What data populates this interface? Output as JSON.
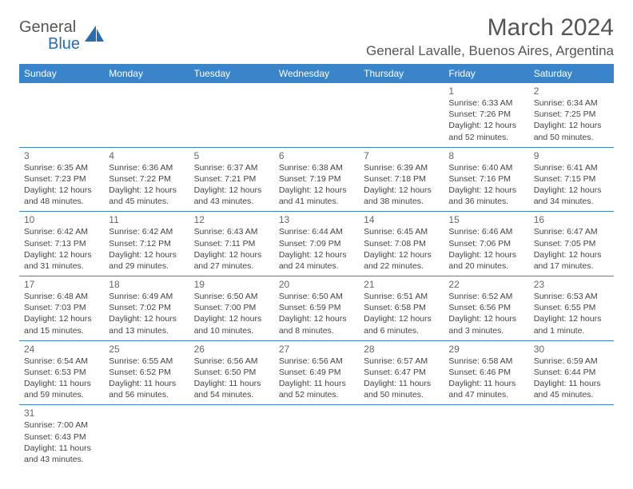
{
  "logo": {
    "text1": "General",
    "text2": "Blue"
  },
  "header": {
    "month_title": "March 2024",
    "location": "General Lavalle, Buenos Aires, Argentina"
  },
  "colors": {
    "header_bg": "#3a85c9",
    "header_text": "#ffffff",
    "divider": "#3a85c9",
    "logo_gray": "#555555",
    "logo_blue": "#2a6cb0"
  },
  "day_labels": [
    "Sunday",
    "Monday",
    "Tuesday",
    "Wednesday",
    "Thursday",
    "Friday",
    "Saturday"
  ],
  "weeks": [
    [
      {
        "n": "",
        "sr": "",
        "ss": "",
        "dl": ""
      },
      {
        "n": "",
        "sr": "",
        "ss": "",
        "dl": ""
      },
      {
        "n": "",
        "sr": "",
        "ss": "",
        "dl": ""
      },
      {
        "n": "",
        "sr": "",
        "ss": "",
        "dl": ""
      },
      {
        "n": "",
        "sr": "",
        "ss": "",
        "dl": ""
      },
      {
        "n": "1",
        "sr": "Sunrise: 6:33 AM",
        "ss": "Sunset: 7:26 PM",
        "dl": "Daylight: 12 hours and 52 minutes."
      },
      {
        "n": "2",
        "sr": "Sunrise: 6:34 AM",
        "ss": "Sunset: 7:25 PM",
        "dl": "Daylight: 12 hours and 50 minutes."
      }
    ],
    [
      {
        "n": "3",
        "sr": "Sunrise: 6:35 AM",
        "ss": "Sunset: 7:23 PM",
        "dl": "Daylight: 12 hours and 48 minutes."
      },
      {
        "n": "4",
        "sr": "Sunrise: 6:36 AM",
        "ss": "Sunset: 7:22 PM",
        "dl": "Daylight: 12 hours and 45 minutes."
      },
      {
        "n": "5",
        "sr": "Sunrise: 6:37 AM",
        "ss": "Sunset: 7:21 PM",
        "dl": "Daylight: 12 hours and 43 minutes."
      },
      {
        "n": "6",
        "sr": "Sunrise: 6:38 AM",
        "ss": "Sunset: 7:19 PM",
        "dl": "Daylight: 12 hours and 41 minutes."
      },
      {
        "n": "7",
        "sr": "Sunrise: 6:39 AM",
        "ss": "Sunset: 7:18 PM",
        "dl": "Daylight: 12 hours and 38 minutes."
      },
      {
        "n": "8",
        "sr": "Sunrise: 6:40 AM",
        "ss": "Sunset: 7:16 PM",
        "dl": "Daylight: 12 hours and 36 minutes."
      },
      {
        "n": "9",
        "sr": "Sunrise: 6:41 AM",
        "ss": "Sunset: 7:15 PM",
        "dl": "Daylight: 12 hours and 34 minutes."
      }
    ],
    [
      {
        "n": "10",
        "sr": "Sunrise: 6:42 AM",
        "ss": "Sunset: 7:13 PM",
        "dl": "Daylight: 12 hours and 31 minutes."
      },
      {
        "n": "11",
        "sr": "Sunrise: 6:42 AM",
        "ss": "Sunset: 7:12 PM",
        "dl": "Daylight: 12 hours and 29 minutes."
      },
      {
        "n": "12",
        "sr": "Sunrise: 6:43 AM",
        "ss": "Sunset: 7:11 PM",
        "dl": "Daylight: 12 hours and 27 minutes."
      },
      {
        "n": "13",
        "sr": "Sunrise: 6:44 AM",
        "ss": "Sunset: 7:09 PM",
        "dl": "Daylight: 12 hours and 24 minutes."
      },
      {
        "n": "14",
        "sr": "Sunrise: 6:45 AM",
        "ss": "Sunset: 7:08 PM",
        "dl": "Daylight: 12 hours and 22 minutes."
      },
      {
        "n": "15",
        "sr": "Sunrise: 6:46 AM",
        "ss": "Sunset: 7:06 PM",
        "dl": "Daylight: 12 hours and 20 minutes."
      },
      {
        "n": "16",
        "sr": "Sunrise: 6:47 AM",
        "ss": "Sunset: 7:05 PM",
        "dl": "Daylight: 12 hours and 17 minutes."
      }
    ],
    [
      {
        "n": "17",
        "sr": "Sunrise: 6:48 AM",
        "ss": "Sunset: 7:03 PM",
        "dl": "Daylight: 12 hours and 15 minutes."
      },
      {
        "n": "18",
        "sr": "Sunrise: 6:49 AM",
        "ss": "Sunset: 7:02 PM",
        "dl": "Daylight: 12 hours and 13 minutes."
      },
      {
        "n": "19",
        "sr": "Sunrise: 6:50 AM",
        "ss": "Sunset: 7:00 PM",
        "dl": "Daylight: 12 hours and 10 minutes."
      },
      {
        "n": "20",
        "sr": "Sunrise: 6:50 AM",
        "ss": "Sunset: 6:59 PM",
        "dl": "Daylight: 12 hours and 8 minutes."
      },
      {
        "n": "21",
        "sr": "Sunrise: 6:51 AM",
        "ss": "Sunset: 6:58 PM",
        "dl": "Daylight: 12 hours and 6 minutes."
      },
      {
        "n": "22",
        "sr": "Sunrise: 6:52 AM",
        "ss": "Sunset: 6:56 PM",
        "dl": "Daylight: 12 hours and 3 minutes."
      },
      {
        "n": "23",
        "sr": "Sunrise: 6:53 AM",
        "ss": "Sunset: 6:55 PM",
        "dl": "Daylight: 12 hours and 1 minute."
      }
    ],
    [
      {
        "n": "24",
        "sr": "Sunrise: 6:54 AM",
        "ss": "Sunset: 6:53 PM",
        "dl": "Daylight: 11 hours and 59 minutes."
      },
      {
        "n": "25",
        "sr": "Sunrise: 6:55 AM",
        "ss": "Sunset: 6:52 PM",
        "dl": "Daylight: 11 hours and 56 minutes."
      },
      {
        "n": "26",
        "sr": "Sunrise: 6:56 AM",
        "ss": "Sunset: 6:50 PM",
        "dl": "Daylight: 11 hours and 54 minutes."
      },
      {
        "n": "27",
        "sr": "Sunrise: 6:56 AM",
        "ss": "Sunset: 6:49 PM",
        "dl": "Daylight: 11 hours and 52 minutes."
      },
      {
        "n": "28",
        "sr": "Sunrise: 6:57 AM",
        "ss": "Sunset: 6:47 PM",
        "dl": "Daylight: 11 hours and 50 minutes."
      },
      {
        "n": "29",
        "sr": "Sunrise: 6:58 AM",
        "ss": "Sunset: 6:46 PM",
        "dl": "Daylight: 11 hours and 47 minutes."
      },
      {
        "n": "30",
        "sr": "Sunrise: 6:59 AM",
        "ss": "Sunset: 6:44 PM",
        "dl": "Daylight: 11 hours and 45 minutes."
      }
    ],
    [
      {
        "n": "31",
        "sr": "Sunrise: 7:00 AM",
        "ss": "Sunset: 6:43 PM",
        "dl": "Daylight: 11 hours and 43 minutes."
      },
      {
        "n": "",
        "sr": "",
        "ss": "",
        "dl": ""
      },
      {
        "n": "",
        "sr": "",
        "ss": "",
        "dl": ""
      },
      {
        "n": "",
        "sr": "",
        "ss": "",
        "dl": ""
      },
      {
        "n": "",
        "sr": "",
        "ss": "",
        "dl": ""
      },
      {
        "n": "",
        "sr": "",
        "ss": "",
        "dl": ""
      },
      {
        "n": "",
        "sr": "",
        "ss": "",
        "dl": ""
      }
    ]
  ]
}
